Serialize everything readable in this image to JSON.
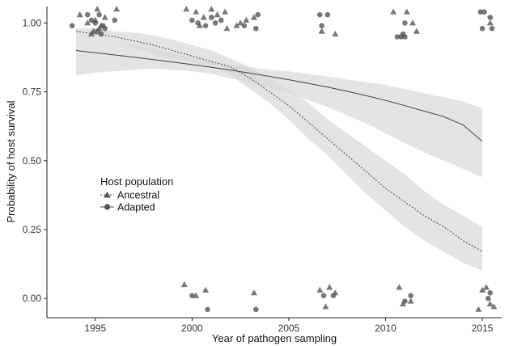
{
  "chart_data": {
    "type": "scatter",
    "xlabel": "Year of pathogen sampling",
    "ylabel": "Probability of host survival",
    "xlim": [
      1992.5,
      2016.0
    ],
    "ylim": [
      -0.07,
      1.06
    ],
    "x_ticks": [
      1995,
      2000,
      2005,
      2010,
      2015
    ],
    "x_tick_labels": [
      "1995",
      "2000",
      "2005",
      "2010",
      "2015"
    ],
    "y_ticks": [
      0,
      0.25,
      0.5,
      0.75,
      1
    ],
    "y_tick_labels": [
      "0.00",
      "0.25",
      "0.50",
      "0.75",
      "1.00"
    ],
    "grid": false,
    "legend": {
      "title": "Host population",
      "placement": "inside-left",
      "entries": [
        {
          "label": "Ancestral",
          "marker": "triangle",
          "line": "dotted"
        },
        {
          "label": "Adapted",
          "marker": "circle",
          "line": "solid"
        }
      ]
    },
    "colors": {
      "points": "#555555",
      "ribbon": "#d9d9d9",
      "line": "#444444"
    },
    "series": [
      {
        "name": "Ancestral",
        "marker": "triangle",
        "fit": {
          "x": [
            1994,
            1995,
            1996,
            1997,
            1998,
            1999,
            2000,
            2001,
            2002,
            2003,
            2004,
            2005,
            2006,
            2007,
            2008,
            2009,
            2010,
            2011,
            2012,
            2013,
            2014,
            2015
          ],
          "y": [
            0.97,
            0.96,
            0.95,
            0.935,
            0.92,
            0.9,
            0.88,
            0.86,
            0.84,
            0.8,
            0.75,
            0.7,
            0.64,
            0.58,
            0.52,
            0.46,
            0.4,
            0.35,
            0.3,
            0.26,
            0.21,
            0.17
          ],
          "ci_low": [
            0.95,
            0.94,
            0.93,
            0.91,
            0.89,
            0.87,
            0.86,
            0.84,
            0.81,
            0.76,
            0.71,
            0.65,
            0.58,
            0.52,
            0.45,
            0.38,
            0.32,
            0.26,
            0.21,
            0.17,
            0.13,
            0.1
          ],
          "ci_high": [
            0.98,
            0.98,
            0.97,
            0.965,
            0.955,
            0.94,
            0.92,
            0.9,
            0.87,
            0.84,
            0.8,
            0.76,
            0.71,
            0.65,
            0.6,
            0.55,
            0.5,
            0.45,
            0.39,
            0.34,
            0.3,
            0.26
          ]
        },
        "points": [
          {
            "x": 1994.2,
            "y": 1.03
          },
          {
            "x": 1994.6,
            "y": 1.0
          },
          {
            "x": 1994.9,
            "y": 0.97
          },
          {
            "x": 1995.1,
            "y": 1.05
          },
          {
            "x": 1995.3,
            "y": 0.99
          },
          {
            "x": 1995.5,
            "y": 1.02
          },
          {
            "x": 1994.8,
            "y": 0.96
          },
          {
            "x": 1996.1,
            "y": 1.05
          },
          {
            "x": 1995.2,
            "y": 0.98
          },
          {
            "x": 1995.0,
            "y": 1.01
          },
          {
            "x": 1999.7,
            "y": 1.05
          },
          {
            "x": 2000.2,
            "y": 1.04
          },
          {
            "x": 2000.6,
            "y": 1.02
          },
          {
            "x": 2001.0,
            "y": 1.05
          },
          {
            "x": 2001.3,
            "y": 1.03
          },
          {
            "x": 2001.7,
            "y": 1.04
          },
          {
            "x": 2002.3,
            "y": 0.99
          },
          {
            "x": 2002.8,
            "y": 1.01
          },
          {
            "x": 2003.2,
            "y": 1.02
          },
          {
            "x": 2000.4,
            "y": 0.99
          },
          {
            "x": 2001.8,
            "y": 0.98
          },
          {
            "x": 2002.5,
            "y": 1.0
          },
          {
            "x": 2006.7,
            "y": 0.97
          },
          {
            "x": 2007.4,
            "y": 0.96
          },
          {
            "x": 2010.4,
            "y": 1.04
          },
          {
            "x": 2011.1,
            "y": 1.04
          },
          {
            "x": 2011.4,
            "y": 1.0
          },
          {
            "x": 2011.6,
            "y": 0.97
          },
          {
            "x": 2015.4,
            "y": 1.0
          },
          {
            "x": 1999.6,
            "y": 0.05
          },
          {
            "x": 2000.2,
            "y": 0.01
          },
          {
            "x": 2000.7,
            "y": 0.03
          },
          {
            "x": 2003.2,
            "y": 0.02
          },
          {
            "x": 2006.6,
            "y": 0.03
          },
          {
            "x": 2006.9,
            "y": -0.03
          },
          {
            "x": 2007.1,
            "y": 0.04
          },
          {
            "x": 2007.4,
            "y": 0.02
          },
          {
            "x": 2010.7,
            "y": 0.04
          },
          {
            "x": 2011.3,
            "y": -0.01
          },
          {
            "x": 2010.9,
            "y": -0.02
          },
          {
            "x": 2014.8,
            "y": -0.04
          },
          {
            "x": 2015.0,
            "y": 0.03
          },
          {
            "x": 2015.2,
            "y": 0.04
          },
          {
            "x": 2015.4,
            "y": -0.02
          },
          {
            "x": 2015.6,
            "y": -0.03
          }
        ]
      },
      {
        "name": "Adapted",
        "marker": "circle",
        "fit": {
          "x": [
            1994,
            1995,
            1996,
            1997,
            1998,
            1999,
            2000,
            2001,
            2002,
            2003,
            2004,
            2005,
            2006,
            2007,
            2008,
            2009,
            2010,
            2011,
            2012,
            2013,
            2014,
            2015
          ],
          "y": [
            0.9,
            0.892,
            0.884,
            0.876,
            0.867,
            0.858,
            0.849,
            0.839,
            0.829,
            0.818,
            0.806,
            0.794,
            0.781,
            0.767,
            0.752,
            0.736,
            0.719,
            0.7,
            0.68,
            0.66,
            0.63,
            0.57
          ],
          "ci_low": [
            0.81,
            0.82,
            0.825,
            0.83,
            0.835,
            0.83,
            0.825,
            0.815,
            0.8,
            0.785,
            0.765,
            0.745,
            0.72,
            0.695,
            0.665,
            0.635,
            0.6,
            0.565,
            0.53,
            0.5,
            0.47,
            0.44
          ],
          "ci_high": [
            0.95,
            0.94,
            0.93,
            0.92,
            0.905,
            0.89,
            0.875,
            0.86,
            0.85,
            0.84,
            0.83,
            0.825,
            0.815,
            0.805,
            0.795,
            0.785,
            0.775,
            0.76,
            0.745,
            0.73,
            0.715,
            0.69
          ]
        },
        "points": [
          {
            "x": 1993.8,
            "y": 0.99
          },
          {
            "x": 1994.6,
            "y": 1.03
          },
          {
            "x": 1994.8,
            "y": 1.01
          },
          {
            "x": 1995.0,
            "y": 1.0
          },
          {
            "x": 1995.1,
            "y": 0.97
          },
          {
            "x": 1995.3,
            "y": 0.96
          },
          {
            "x": 1995.5,
            "y": 0.98
          },
          {
            "x": 1995.2,
            "y": 1.03
          },
          {
            "x": 1996.0,
            "y": 1.01
          },
          {
            "x": 1995.4,
            "y": 0.99
          },
          {
            "x": 2000.0,
            "y": 1.01
          },
          {
            "x": 2000.3,
            "y": 1.0
          },
          {
            "x": 2000.7,
            "y": 0.99
          },
          {
            "x": 2001.0,
            "y": 1.02
          },
          {
            "x": 2001.2,
            "y": 1.0
          },
          {
            "x": 2001.5,
            "y": 1.01
          },
          {
            "x": 2002.7,
            "y": 0.99
          },
          {
            "x": 2003.3,
            "y": 0.98
          },
          {
            "x": 2003.4,
            "y": 1.03
          },
          {
            "x": 2006.6,
            "y": 1.03
          },
          {
            "x": 2007.0,
            "y": 1.03
          },
          {
            "x": 2006.7,
            "y": 0.99
          },
          {
            "x": 2010.6,
            "y": 0.95
          },
          {
            "x": 2010.8,
            "y": 0.95
          },
          {
            "x": 2011.0,
            "y": 0.95
          },
          {
            "x": 2010.9,
            "y": 0.96
          },
          {
            "x": 2011.0,
            "y": 1.0
          },
          {
            "x": 2014.9,
            "y": 1.04
          },
          {
            "x": 2015.1,
            "y": 1.04
          },
          {
            "x": 2015.0,
            "y": 0.98
          },
          {
            "x": 2015.4,
            "y": 1.02
          },
          {
            "x": 2015.5,
            "y": 0.98
          },
          {
            "x": 2000.0,
            "y": 0.01
          },
          {
            "x": 2000.8,
            "y": -0.04
          },
          {
            "x": 2003.3,
            "y": -0.04
          },
          {
            "x": 2006.8,
            "y": 0.01
          },
          {
            "x": 2007.3,
            "y": 0.01
          },
          {
            "x": 2011.3,
            "y": 0.01
          },
          {
            "x": 2011.0,
            "y": -0.01
          },
          {
            "x": 2015.3,
            "y": 0.0
          },
          {
            "x": 2015.4,
            "y": 0.02
          }
        ]
      }
    ]
  }
}
